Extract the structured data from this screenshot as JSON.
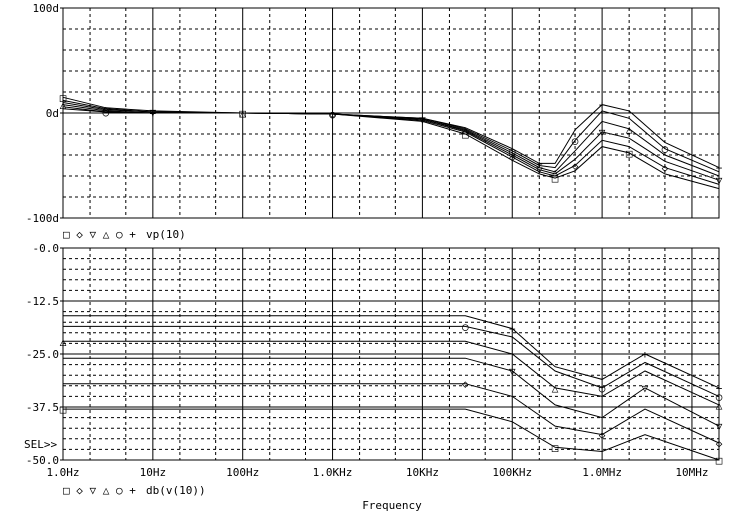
{
  "x_axis": {
    "label": "Frequency",
    "ticks": [
      {
        "f": 1,
        "label": "1.0Hz"
      },
      {
        "f": 10,
        "label": "10Hz"
      },
      {
        "f": 100,
        "label": "100Hz"
      },
      {
        "f": 1000,
        "label": "1.0KHz"
      },
      {
        "f": 10000,
        "label": "10KHz"
      },
      {
        "f": 100000,
        "label": "100KHz"
      },
      {
        "f": 1000000,
        "label": "1.0MHz"
      },
      {
        "f": 10000000,
        "label": "10MHz"
      }
    ],
    "scale": "log",
    "range": [
      1,
      20000000
    ]
  },
  "sel_marker": "SEL>>",
  "chart_data": [
    {
      "type": "line",
      "panel": "top",
      "ylim": [
        -100,
        100
      ],
      "y_ticks": [
        {
          "v": 100,
          "label": "100d"
        },
        {
          "v": 0,
          "label": "0d"
        },
        {
          "v": -100,
          "label": "-100d"
        }
      ],
      "legend": {
        "symbols": "□ ◇ ▽ △ ○ +",
        "expr": "vp(10)"
      },
      "grid": true,
      "series": [
        {
          "symbol": "□",
          "points": [
            [
              1,
              15
            ],
            [
              3,
              5
            ],
            [
              10,
              2
            ],
            [
              100,
              0
            ],
            [
              1000,
              -1
            ],
            [
              10000,
              -8
            ],
            [
              30000,
              -20
            ],
            [
              100000,
              -45
            ],
            [
              200000,
              -58
            ],
            [
              300000,
              -62
            ],
            [
              500000,
              -55
            ],
            [
              1000000,
              -32
            ],
            [
              2000000,
              -38
            ],
            [
              5000000,
              -58
            ],
            [
              20000000,
              -72
            ]
          ]
        },
        {
          "symbol": "◇",
          "points": [
            [
              1,
              12
            ],
            [
              3,
              4
            ],
            [
              10,
              1
            ],
            [
              100,
              0
            ],
            [
              1000,
              -1
            ],
            [
              10000,
              -7
            ],
            [
              30000,
              -18
            ],
            [
              100000,
              -42
            ],
            [
              200000,
              -56
            ],
            [
              300000,
              -60
            ],
            [
              500000,
              -50
            ],
            [
              1000000,
              -26
            ],
            [
              2000000,
              -32
            ],
            [
              5000000,
              -52
            ],
            [
              20000000,
              -68
            ]
          ]
        },
        {
          "symbol": "▽",
          "points": [
            [
              1,
              10
            ],
            [
              3,
              3
            ],
            [
              10,
              1
            ],
            [
              100,
              0
            ],
            [
              1000,
              -1
            ],
            [
              10000,
              -6
            ],
            [
              30000,
              -17
            ],
            [
              100000,
              -40
            ],
            [
              200000,
              -54
            ],
            [
              300000,
              -58
            ],
            [
              500000,
              -44
            ],
            [
              1000000,
              -18
            ],
            [
              2000000,
              -24
            ],
            [
              5000000,
              -46
            ],
            [
              20000000,
              -64
            ]
          ]
        },
        {
          "symbol": "△",
          "points": [
            [
              1,
              8
            ],
            [
              3,
              2
            ],
            [
              10,
              0
            ],
            [
              100,
              0
            ],
            [
              1000,
              -1
            ],
            [
              10000,
              -6
            ],
            [
              30000,
              -16
            ],
            [
              100000,
              -38
            ],
            [
              200000,
              -52
            ],
            [
              300000,
              -56
            ],
            [
              500000,
              -36
            ],
            [
              1000000,
              -8
            ],
            [
              2000000,
              -15
            ],
            [
              5000000,
              -40
            ],
            [
              20000000,
              -60
            ]
          ]
        },
        {
          "symbol": "○",
          "points": [
            [
              1,
              6
            ],
            [
              3,
              1
            ],
            [
              10,
              0
            ],
            [
              100,
              0
            ],
            [
              1000,
              -1
            ],
            [
              10000,
              -5
            ],
            [
              30000,
              -15
            ],
            [
              100000,
              -36
            ],
            [
              200000,
              -50
            ],
            [
              300000,
              -52
            ],
            [
              500000,
              -26
            ],
            [
              1000000,
              2
            ],
            [
              2000000,
              -5
            ],
            [
              5000000,
              -34
            ],
            [
              20000000,
              -56
            ]
          ]
        },
        {
          "symbol": "+",
          "points": [
            [
              1,
              4
            ],
            [
              3,
              1
            ],
            [
              10,
              0
            ],
            [
              100,
              0
            ],
            [
              1000,
              -1
            ],
            [
              10000,
              -5
            ],
            [
              30000,
              -14
            ],
            [
              100000,
              -34
            ],
            [
              200000,
              -48
            ],
            [
              300000,
              -48
            ],
            [
              500000,
              -16
            ],
            [
              1000000,
              8
            ],
            [
              2000000,
              2
            ],
            [
              5000000,
              -28
            ],
            [
              20000000,
              -52
            ]
          ]
        }
      ]
    },
    {
      "type": "line",
      "panel": "bottom",
      "ylim": [
        -50,
        0
      ],
      "y_ticks": [
        {
          "v": 0,
          "label": "-0.0"
        },
        {
          "v": -12.5,
          "label": "-12.5"
        },
        {
          "v": -25,
          "label": "-25.0"
        },
        {
          "v": -37.5,
          "label": "-37.5"
        },
        {
          "v": -50,
          "label": "-50.0"
        }
      ],
      "legend": {
        "symbols": "□ ◇ ▽ △ ○ +",
        "expr": "db(v(10))"
      },
      "grid": true,
      "series": [
        {
          "symbol": "□",
          "points": [
            [
              1,
              -38
            ],
            [
              30000,
              -38
            ],
            [
              100000,
              -41
            ],
            [
              300000,
              -47
            ],
            [
              1000000,
              -48
            ],
            [
              3000000,
              -44
            ],
            [
              20000000,
              -50
            ]
          ]
        },
        {
          "symbol": "◇",
          "points": [
            [
              1,
              -32
            ],
            [
              30000,
              -32
            ],
            [
              100000,
              -35
            ],
            [
              300000,
              -42
            ],
            [
              1000000,
              -44
            ],
            [
              3000000,
              -38
            ],
            [
              20000000,
              -46
            ]
          ]
        },
        {
          "symbol": "▽",
          "points": [
            [
              1,
              -26
            ],
            [
              30000,
              -26
            ],
            [
              100000,
              -29
            ],
            [
              300000,
              -37
            ],
            [
              1000000,
              -40
            ],
            [
              3000000,
              -33
            ],
            [
              20000000,
              -42
            ]
          ]
        },
        {
          "symbol": "△",
          "points": [
            [
              1,
              -22
            ],
            [
              30000,
              -22
            ],
            [
              100000,
              -25
            ],
            [
              300000,
              -33
            ],
            [
              1000000,
              -35
            ],
            [
              3000000,
              -29
            ],
            [
              20000000,
              -37
            ]
          ]
        },
        {
          "symbol": "○",
          "points": [
            [
              1,
              -18.5
            ],
            [
              30000,
              -18.5
            ],
            [
              100000,
              -21
            ],
            [
              300000,
              -29
            ],
            [
              1000000,
              -33
            ],
            [
              3000000,
              -27
            ],
            [
              20000000,
              -35
            ]
          ]
        },
        {
          "symbol": "+",
          "points": [
            [
              1,
              -16
            ],
            [
              30000,
              -16
            ],
            [
              100000,
              -19
            ],
            [
              300000,
              -28
            ],
            [
              1000000,
              -31
            ],
            [
              3000000,
              -25
            ],
            [
              20000000,
              -33
            ]
          ]
        }
      ]
    }
  ]
}
